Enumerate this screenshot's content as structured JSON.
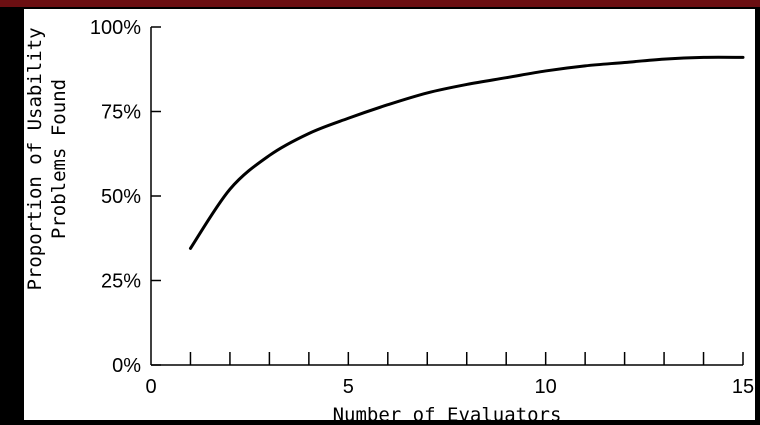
{
  "chart_data": {
    "type": "line",
    "title": "",
    "xlabel": "Number of Evaluators",
    "ylabel_lines": [
      "Proportion of Usability",
      "Problems Found"
    ],
    "xlim": [
      0,
      15
    ],
    "ylim": [
      0,
      100
    ],
    "x_ticks": [
      0,
      5,
      10,
      15
    ],
    "x_tick_labels": [
      "0",
      "5",
      "10",
      "15"
    ],
    "x_minor_ticks": [
      1,
      2,
      3,
      4,
      5,
      6,
      7,
      8,
      9,
      10,
      11,
      12,
      13,
      14,
      15
    ],
    "y_ticks": [
      0,
      25,
      50,
      75,
      100
    ],
    "y_tick_labels": [
      "0%",
      "25%",
      "50%",
      "75%",
      "100%"
    ],
    "grid": false,
    "line_color": "#000000",
    "series": [
      {
        "x": [
          1,
          2,
          3,
          4,
          5,
          6,
          7,
          8,
          9,
          10,
          11,
          12,
          13,
          14,
          15
        ],
        "y": [
          34.5,
          52,
          62,
          68.5,
          73,
          77,
          80.5,
          83,
          85,
          87,
          88.5,
          89.5,
          90.5,
          91,
          91
        ]
      }
    ]
  }
}
